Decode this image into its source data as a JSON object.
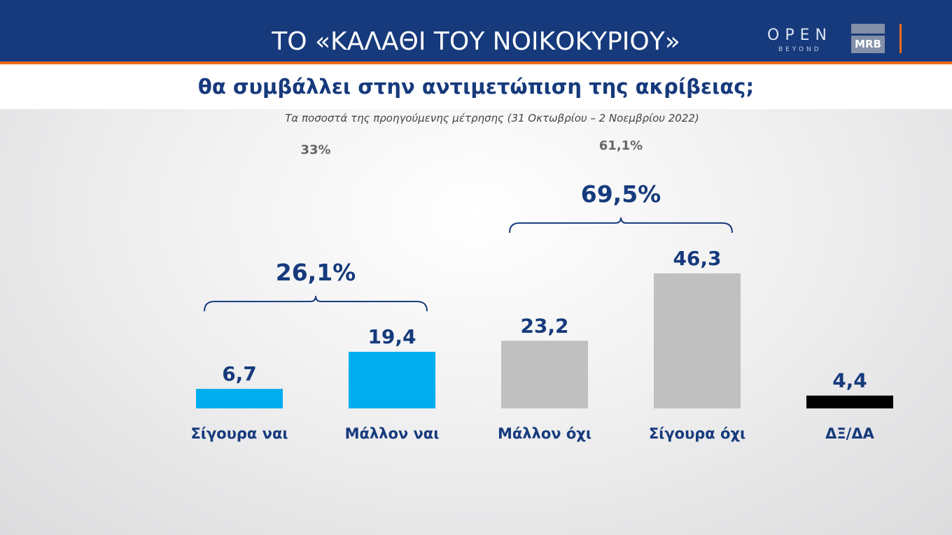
{
  "header": {
    "title": "ΤΟ «ΚΑΛΑΘΙ ΤΟΥ ΝΟΙΚΟΚΥΡΙΟΥ»",
    "logo_open": "OPEN",
    "logo_beyond": "BEYOND",
    "logo_mrb": "MRB"
  },
  "chart_data": {
    "type": "bar",
    "title": "θα συμβάλλει στην αντιμετώπιση της ακρίβειας;",
    "subtitle": "Τα ποσοστά της προηγούμενης μέτρησης (31 Οκτωβρίου – 2 Νοεμβρίου 2022)",
    "categories": [
      "Σίγουρα ναι",
      "Μάλλον ναι",
      "Μάλλον όχι",
      "Σίγουρα όχι",
      "ΔΞ/ΔΑ"
    ],
    "values": [
      6.7,
      19.4,
      23.2,
      46.3,
      4.4
    ],
    "value_labels": [
      "6,7",
      "19,4",
      "23,2",
      "46,3",
      "4,4"
    ],
    "colors": [
      "#00aeef",
      "#00aeef",
      "#c0c0c0",
      "#c0c0c0",
      "#000000"
    ],
    "groups": [
      {
        "label": "26,1%",
        "previous": "33%",
        "members": [
          0,
          1
        ]
      },
      {
        "label": "69,5%",
        "previous": "61,1%",
        "members": [
          2,
          3
        ]
      }
    ],
    "label_color": "#163a7c"
  }
}
